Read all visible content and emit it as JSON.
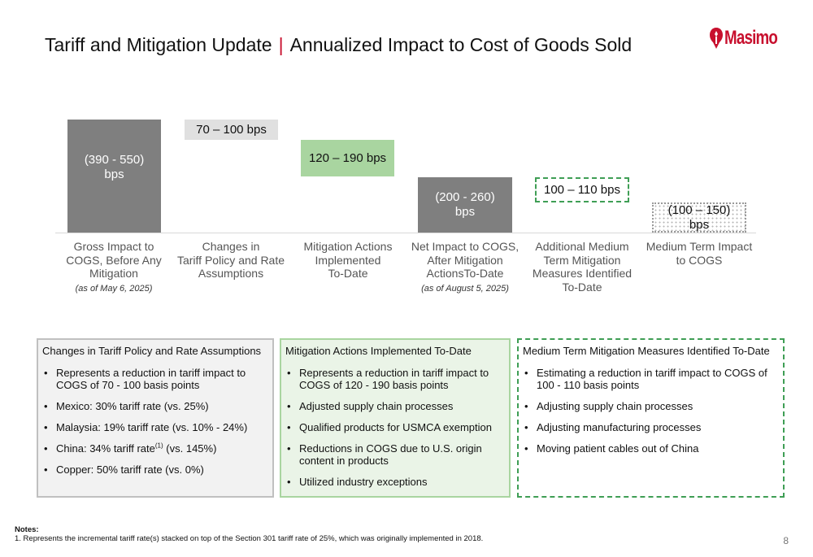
{
  "header": {
    "title_main": "Tariff and Mitigation Update",
    "separator": "|",
    "title_sub": "Annualized Impact to Cost of Goods Sold",
    "logo_text": "Masimo",
    "brand_color": "#c8102e"
  },
  "chart_data": {
    "type": "bar",
    "categories": [
      "Gross Impact to COGS, Before Any Mitigation",
      "Changes in Tariff Policy and Rate Assumptions",
      "Mitigation Actions Implemented To-Date",
      "Net Impact to COGS, After Mitigation ActionsTo-Date",
      "Additional Medium Term Mitigation Measures Identified To-Date",
      "Medium Term Impact to COGS"
    ],
    "value_labels": [
      "(390 - 550) bps",
      "70 – 100 bps",
      "120 – 190 bps",
      "(200 - 260) bps",
      "100 – 110 bps",
      "(100 – 150) bps"
    ],
    "ranges_bps": [
      [
        -550,
        -390
      ],
      [
        70,
        100
      ],
      [
        120,
        190
      ],
      [
        -260,
        -200
      ],
      [
        100,
        110
      ],
      [
        -150,
        -100
      ]
    ],
    "bar_styles": [
      "solid-gray",
      "light-gray",
      "green",
      "solid-gray",
      "dashed-green",
      "dotted-gray"
    ],
    "as_of_notes": [
      "(as of May 6, 2025)",
      "",
      "",
      "(as of August 5, 2025)",
      "",
      ""
    ]
  },
  "bars": [
    {
      "label": "(390 - 550)\nbps"
    },
    {
      "label": "70 – 100 bps"
    },
    {
      "label": "120 – 190 bps"
    },
    {
      "label": "(200 - 260)\nbps"
    },
    {
      "label": "100 – 110 bps"
    },
    {
      "label": "(100 – 150)\nbps"
    }
  ],
  "categories": [
    {
      "label": "Gross Impact to\nCOGS, Before Any\nMitigation",
      "as_of": "(as of May 6, 2025)"
    },
    {
      "label": "Changes in\nTariff Policy and Rate\nAssumptions"
    },
    {
      "label": "Mitigation Actions\nImplemented\nTo-Date"
    },
    {
      "label": "Net Impact to COGS,\nAfter Mitigation\nActionsTo-Date",
      "as_of": "(as of August 5, 2025)"
    },
    {
      "label": "Additional Medium\nTerm Mitigation\nMeasures Identified\nTo-Date"
    },
    {
      "label": "Medium Term Impact\nto COGS"
    }
  ],
  "boxes": {
    "policy": {
      "heading": "Changes in Tariff Policy and Rate Assumptions",
      "items": [
        "Represents a reduction in tariff impact to COGS of 70 - 100 basis points",
        "Mexico:  30% tariff rate (vs. 25%)",
        "Malaysia: 19% tariff rate (vs. 10% - 24%)",
        "China:  34% tariff rate",
        "Copper:  50% tariff rate (vs. 0%)"
      ],
      "china_footnote": "(1)",
      "china_suffix": " (vs. 145%)"
    },
    "mitigation": {
      "heading": "Mitigation Actions Implemented To-Date",
      "items": [
        "Represents a reduction in tariff impact to COGS of 120 - 190 basis points",
        "Adjusted supply chain processes",
        "Qualified products for USMCA exemption",
        "Reductions in COGS due to U.S. origin content in products",
        "Utilized industry exceptions"
      ]
    },
    "medium_term": {
      "heading": "Medium Term Mitigation Measures Identified To-Date",
      "items": [
        "Estimating a reduction in tariff impact to COGS of 100 - 110 basis points",
        "Adjusting supply chain processes",
        "Adjusting manufacturing processes",
        "Moving patient cables out of China"
      ]
    }
  },
  "bullet": "•",
  "notes": {
    "heading": "Notes:",
    "text": "1. Represents the incremental tariff rate(s) stacked on top of the Section 301 tariff rate of 25%, which was originally implemented in 2018."
  },
  "page_number": "8"
}
